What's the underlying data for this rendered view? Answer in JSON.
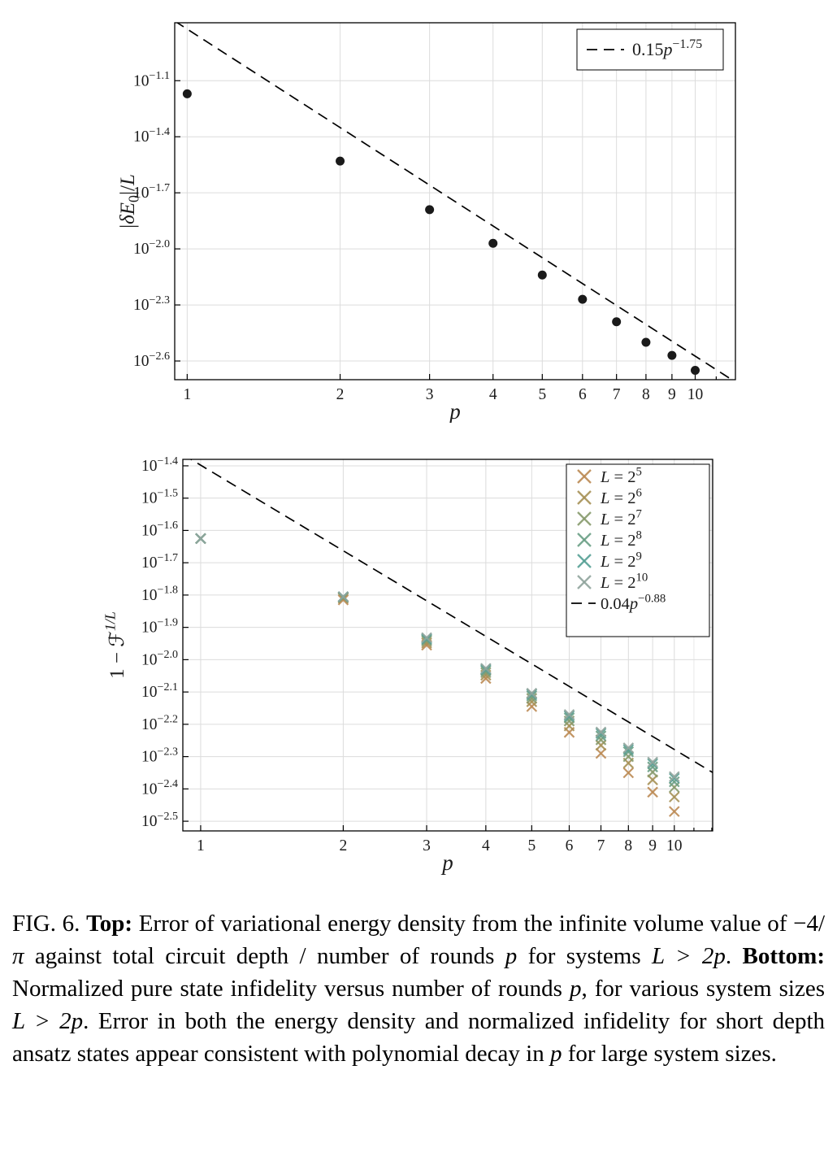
{
  "page": {
    "background": "#ffffff"
  },
  "chart_data": [
    {
      "type": "scatter",
      "title": "",
      "xlabel": "p",
      "ylabel": "|δE0|/L",
      "xlabel_parts": [
        {
          "text": "p",
          "style": "italic"
        }
      ],
      "ylabel_parts": [
        {
          "text": "|"
        },
        {
          "text": "δE",
          "style": "italic"
        },
        {
          "text": "0",
          "pos": "sub"
        },
        {
          "text": "|/"
        },
        {
          "text": "L",
          "style": "italic"
        }
      ],
      "x_scale": "log10",
      "y_scale": "log10",
      "grid": true,
      "legend_position": "top-right",
      "xticks": [
        1,
        2,
        3,
        4,
        5,
        6,
        7,
        8,
        9,
        10
      ],
      "yticks_log10": [
        -1.1,
        -1.4,
        -1.7,
        -2.0,
        -2.3,
        -2.6
      ],
      "xlim": [
        0.945,
        12.0
      ],
      "ylim_log10": [
        -2.7,
        -0.79
      ],
      "marker": {
        "shape": "circle",
        "color": "#1a1a1a"
      },
      "x": [
        1,
        2,
        3,
        4,
        5,
        6,
        7,
        8,
        9,
        10
      ],
      "y_log10": [
        -1.17,
        -1.53,
        -1.79,
        -1.97,
        -2.14,
        -2.27,
        -2.39,
        -2.5,
        -2.57,
        -2.65
      ],
      "fit": {
        "coeff": 0.15,
        "exponent": -1.75,
        "label": "0.15p^-1.75",
        "label_parts": [
          {
            "text": "0.15"
          },
          {
            "text": "p",
            "style": "italic"
          },
          {
            "text": "−1.75",
            "pos": "sup"
          }
        ]
      }
    },
    {
      "type": "scatter",
      "title": "",
      "xlabel": "p",
      "ylabel": "1 − F^(1/L)",
      "xlabel_parts": [
        {
          "text": "p",
          "style": "italic"
        }
      ],
      "ylabel_parts": [
        {
          "text": "1 − "
        },
        {
          "text": "ℱ"
        },
        {
          "text": "1/L",
          "pos": "sup",
          "style": "italic"
        }
      ],
      "x_scale": "log10",
      "y_scale": "log10",
      "grid": true,
      "legend_position": "top-right",
      "xticks": [
        1,
        2,
        3,
        4,
        5,
        6,
        7,
        8,
        9,
        10
      ],
      "yticks_log10": [
        -1.4,
        -1.5,
        -1.6,
        -1.7,
        -1.8,
        -1.9,
        -2.0,
        -2.1,
        -2.2,
        -2.3,
        -2.4,
        -2.5
      ],
      "xlim": [
        0.917,
        12.05
      ],
      "ylim_log10": [
        -2.53,
        -1.38
      ],
      "marker": {
        "shape": "x"
      },
      "x": [
        1,
        2,
        3,
        4,
        5,
        6,
        7,
        8,
        9,
        10
      ],
      "series": [
        {
          "name": "L = 2^5",
          "color": "#bb8a53",
          "label_parts": [
            {
              "text": "L",
              "style": "italic"
            },
            {
              "text": " = 2"
            },
            {
              "text": "5",
              "pos": "sup"
            }
          ],
          "y_log10": [
            -1.625,
            -1.815,
            -1.955,
            -2.058,
            -2.145,
            -2.225,
            -2.29,
            -2.35,
            -2.41,
            -2.47
          ]
        },
        {
          "name": "L = 2^6",
          "color": "#a69157",
          "label_parts": [
            {
              "text": "L",
              "style": "italic"
            },
            {
              "text": " = 2"
            },
            {
              "text": "6",
              "pos": "sup"
            }
          ],
          "y_log10": [
            -1.625,
            -1.81,
            -1.948,
            -2.048,
            -2.13,
            -2.205,
            -2.265,
            -2.32,
            -2.372,
            -2.425
          ]
        },
        {
          "name": "L = 2^7",
          "color": "#879a6d",
          "label_parts": [
            {
              "text": "L",
              "style": "italic"
            },
            {
              "text": " = 2"
            },
            {
              "text": "7",
              "pos": "sup"
            }
          ],
          "y_log10": [
            -1.625,
            -1.807,
            -1.942,
            -2.04,
            -2.12,
            -2.19,
            -2.248,
            -2.3,
            -2.348,
            -2.395
          ]
        },
        {
          "name": "L = 2^8",
          "color": "#6a9e85",
          "label_parts": [
            {
              "text": "L",
              "style": "italic"
            },
            {
              "text": " = 2"
            },
            {
              "text": "8",
              "pos": "sup"
            }
          ],
          "y_log10": [
            -1.625,
            -1.806,
            -1.938,
            -2.034,
            -2.112,
            -2.18,
            -2.236,
            -2.285,
            -2.332,
            -2.378
          ]
        },
        {
          "name": "L = 2^9",
          "color": "#55a095",
          "label_parts": [
            {
              "text": "L",
              "style": "italic"
            },
            {
              "text": " = 2"
            },
            {
              "text": "9",
              "pos": "sup"
            }
          ],
          "y_log10": [
            -1.625,
            -1.805,
            -1.935,
            -2.03,
            -2.107,
            -2.174,
            -2.228,
            -2.278,
            -2.322,
            -2.367
          ]
        },
        {
          "name": "L = 2^10",
          "color": "#90a49c",
          "label_parts": [
            {
              "text": "L",
              "style": "italic"
            },
            {
              "text": " = 2"
            },
            {
              "text": "10",
              "pos": "sup"
            }
          ],
          "y_log10": [
            -1.625,
            -1.805,
            -1.932,
            -2.027,
            -2.104,
            -2.17,
            -2.224,
            -2.273,
            -2.317,
            -2.362
          ]
        }
      ],
      "fit": {
        "coeff": 0.04,
        "exponent": -0.88,
        "label": "0.04p^-0.88",
        "label_parts": [
          {
            "text": "0.04"
          },
          {
            "text": "p",
            "style": "italic"
          },
          {
            "text": "−0.88",
            "pos": "sup"
          }
        ]
      }
    }
  ],
  "figure": {
    "caption_segments": [
      {
        "text": "FIG. 6.  ",
        "style": "normal"
      },
      {
        "text": "Top:",
        "style": "bold"
      },
      {
        "text": " Error of variational energy density from the infinite volume value of −4/",
        "style": "normal"
      },
      {
        "text": "π",
        "style": "italic"
      },
      {
        "text": " against total circuit depth / number of rounds ",
        "style": "normal"
      },
      {
        "text": "p",
        "style": "italic"
      },
      {
        "text": " for systems ",
        "style": "normal"
      },
      {
        "text": "L > 2p",
        "style": "italic"
      },
      {
        "text": ".  ",
        "style": "normal"
      },
      {
        "text": "Bottom:",
        "style": "bold"
      },
      {
        "text": " Normalized pure state infidelity versus number of rounds ",
        "style": "normal"
      },
      {
        "text": "p",
        "style": "italic"
      },
      {
        "text": ", for various system sizes ",
        "style": "normal"
      },
      {
        "text": "L > 2p",
        "style": "italic"
      },
      {
        "text": ". Error in both the energy density and normalized infidelity for short depth ansatz states appear consistent with polynomial decay in ",
        "style": "normal"
      },
      {
        "text": "p",
        "style": "italic"
      },
      {
        "text": " for large system sizes.",
        "style": "normal"
      }
    ]
  }
}
